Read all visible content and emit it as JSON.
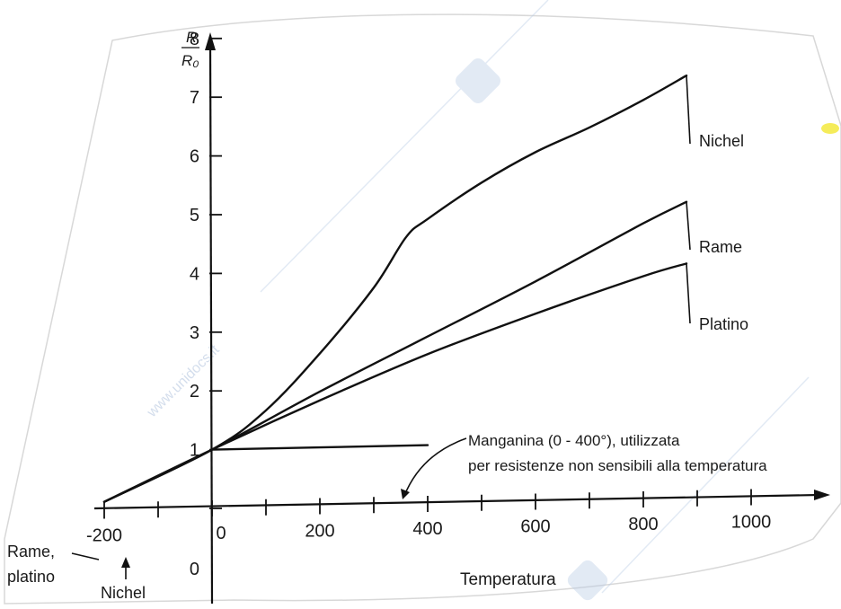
{
  "chart_data": {
    "type": "line",
    "ylabel_num": "R",
    "ylabel_den": "R₀",
    "xlabel": "Temperatura",
    "xlim": [
      -200,
      1000
    ],
    "ylim": [
      0,
      8
    ],
    "x_tick_labels": [
      "-200",
      "0",
      "200",
      "400",
      "600",
      "800",
      "1000"
    ],
    "y_tick_labels": [
      "0",
      "1",
      "2",
      "3",
      "4",
      "5",
      "6",
      "7",
      "8"
    ],
    "series": [
      {
        "name": "Nichel",
        "points": [
          [
            -200,
            0.15
          ],
          [
            0,
            1.0
          ],
          [
            100,
            1.65
          ],
          [
            200,
            2.6
          ],
          [
            300,
            3.7
          ],
          [
            360,
            4.55
          ],
          [
            400,
            4.85
          ],
          [
            500,
            5.45
          ],
          [
            600,
            5.95
          ],
          [
            700,
            6.35
          ],
          [
            800,
            6.8
          ],
          [
            880,
            7.2
          ]
        ]
      },
      {
        "name": "Rame",
        "points": [
          [
            -200,
            0.15
          ],
          [
            0,
            1.0
          ],
          [
            200,
            1.95
          ],
          [
            400,
            2.85
          ],
          [
            600,
            3.75
          ],
          [
            800,
            4.7
          ],
          [
            880,
            5.05
          ]
        ]
      },
      {
        "name": "Platino",
        "points": [
          [
            -200,
            0.15
          ],
          [
            0,
            1.0
          ],
          [
            200,
            1.8
          ],
          [
            400,
            2.55
          ],
          [
            600,
            3.2
          ],
          [
            800,
            3.8
          ],
          [
            880,
            4.0
          ]
        ]
      },
      {
        "name": "Manganina",
        "points": [
          [
            0,
            1.0
          ],
          [
            400,
            1.0
          ]
        ]
      }
    ],
    "annotations": {
      "manganina_line1": "Manganina (0 - 400°), utilizzata",
      "manganina_line2": "per resistenze non sensibili alla temperatura",
      "rame_platino_line1": "Rame,",
      "rame_platino_line2": "platino",
      "nichel_low": "Nichel"
    }
  },
  "watermark": "www.unidocs.it"
}
